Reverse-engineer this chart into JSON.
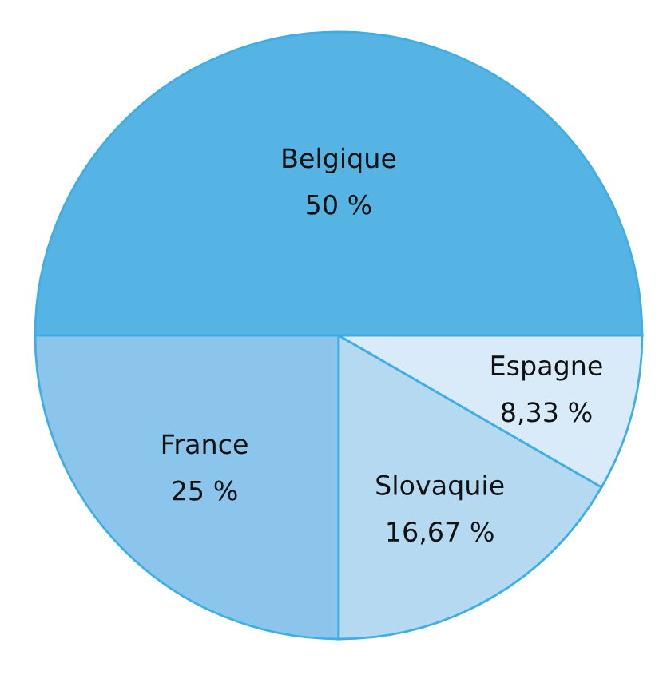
{
  "chart_data": {
    "type": "pie",
    "categories": [
      "Belgique",
      "France",
      "Slovaquie",
      "Espagne"
    ],
    "values": [
      50,
      25,
      16.67,
      8.33
    ],
    "value_labels": [
      "50 %",
      "25 %",
      "16,67 %",
      "8,33 %"
    ],
    "colors": [
      "#56b4e5",
      "#8cc5ec",
      "#b4d9f1",
      "#d9ebf9"
    ]
  }
}
